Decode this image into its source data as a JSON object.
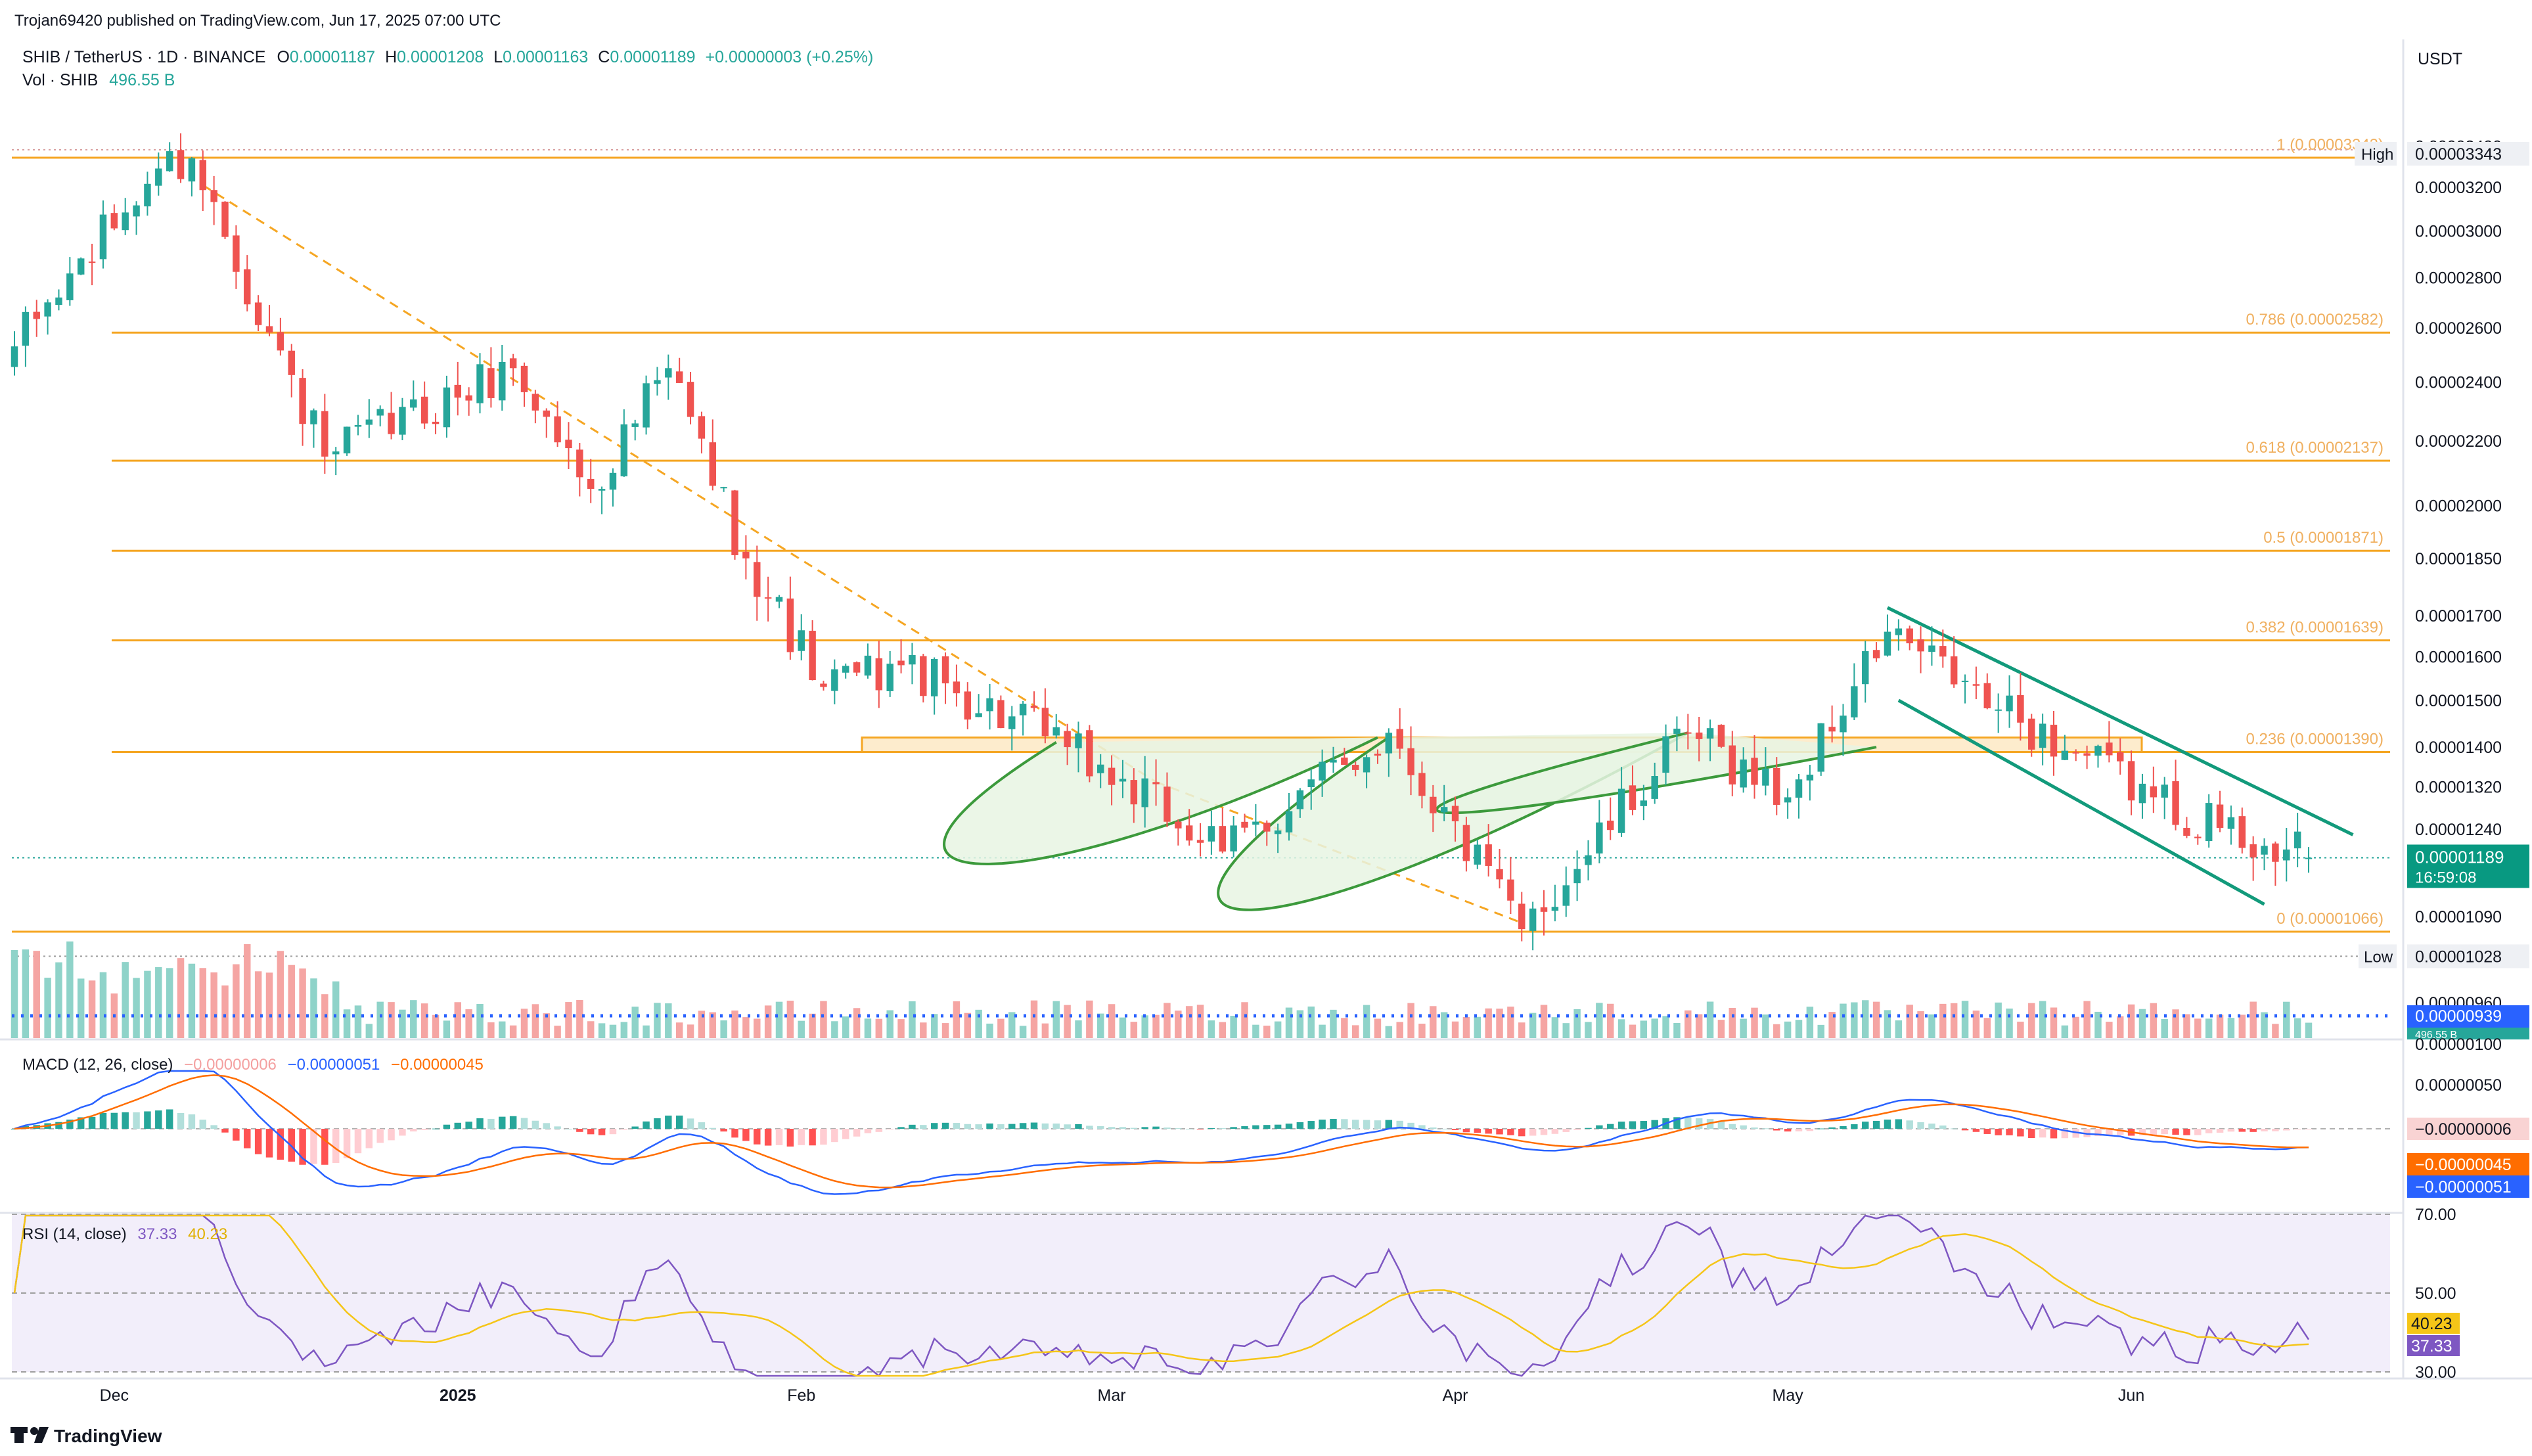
{
  "header": {
    "published": "Trojan69420 published on TradingView.com, Jun 17, 2025 07:00 UTC",
    "symbol": "SHIB / TetherUS · 1D · BINANCE",
    "ohlc": [
      {
        "k": "O",
        "v": "0.00001187"
      },
      {
        "k": "H",
        "v": "0.00001208"
      },
      {
        "k": "L",
        "v": "0.00001163"
      },
      {
        "k": "C",
        "v": "0.00001189"
      }
    ],
    "change": "+0.00000003 (+0.25%)",
    "vol_label": "Vol · SHIB",
    "vol_value": "496.55 B",
    "currency": "USDT",
    "brand": "TradingView",
    "colors": {
      "up": "#26a69a",
      "down": "#ef5350",
      "fib": "#f5a623",
      "pattern": "#3c9a3c",
      "channel": "#129a7b",
      "macd": "#2962ff",
      "signal": "#ff6d00",
      "rsi": "#7e57c2",
      "rsi_ma": "#f5c518"
    }
  },
  "price_axis": {
    "labels": [
      "0.00003400",
      "0.00003200",
      "0.00003000",
      "0.00002800",
      "0.00002600",
      "0.00002400",
      "0.00002200",
      "0.00002000",
      "0.00001850",
      "0.00001700",
      "0.00001600",
      "0.00001500",
      "0.00001400",
      "0.00001320",
      "0.00001240",
      "0.00001090",
      "0.00000960"
    ],
    "high_tag": "High",
    "high_value": "0.00003343",
    "low_tag": "Low",
    "low_value": "0.00001028",
    "last_price": "0.00001189",
    "countdown": "16:59:08",
    "vol_avg_value": "0.00000939",
    "vol_tag": "496.55 B"
  },
  "time_axis": [
    "Dec",
    "2025",
    "Feb",
    "Mar",
    "Apr",
    "May",
    "Jun"
  ],
  "fib_levels": [
    {
      "label": "1 (0.00003343)",
      "value": 3.343e-05
    },
    {
      "label": "0.786 (0.00002582)",
      "value": 2.582e-05
    },
    {
      "label": "0.618 (0.00002137)",
      "value": 2.137e-05
    },
    {
      "label": "0.5 (0.00001871)",
      "value": 1.871e-05
    },
    {
      "label": "0.382 (0.00001639)",
      "value": 1.639e-05
    },
    {
      "label": "0.236 (0.00001390)",
      "value": 1.39e-05
    },
    {
      "label": "0 (0.00001066)",
      "value": 1.066e-05
    }
  ],
  "macd": {
    "label": "MACD (12, 26, close)",
    "hist_value": "−0.00000006",
    "macd_value": "−0.00000051",
    "signal_value": "−0.00000045",
    "axis_labels": [
      "0.00000100",
      "0.00000050"
    ],
    "tags": {
      "hist": "−0.00000006",
      "signal": "−0.00000045",
      "macd": "−0.00000051"
    }
  },
  "rsi": {
    "label": "RSI (14, close)",
    "rsi_value": "37.33",
    "ma_value": "40.23",
    "axis_labels": [
      "70.00",
      "50.00",
      "30.00"
    ],
    "tags": {
      "ma": "40.23",
      "rsi": "37.33"
    }
  },
  "chart_data": {
    "type": "candlestick",
    "title": "SHIB / TetherUS · 1D · BINANCE",
    "yscale": "log",
    "ylim": [
      9.4e-06,
      3.55e-05
    ],
    "x_range": [
      "2024-11-22",
      "2025-06-17"
    ],
    "key_points": [
      {
        "date": "2024-11-22",
        "close": 2.53e-05
      },
      {
        "date": "2024-12-05",
        "close": 3.29e-05
      },
      {
        "date": "2024-12-08",
        "close": 3.34e-05
      },
      {
        "date": "2024-12-20",
        "close": 2.15e-05
      },
      {
        "date": "2025-01-06",
        "close": 2.45e-05
      },
      {
        "date": "2025-01-13",
        "close": 2.05e-05
      },
      {
        "date": "2025-01-20",
        "close": 2.45e-05
      },
      {
        "date": "2025-01-27",
        "close": 1.85e-05
      },
      {
        "date": "2025-02-03",
        "close": 1.53e-05
      },
      {
        "date": "2025-02-10",
        "close": 1.58e-05
      },
      {
        "date": "2025-02-25",
        "close": 1.4e-05
      },
      {
        "date": "2025-03-11",
        "close": 1.2e-05
      },
      {
        "date": "2025-03-26",
        "close": 1.43e-05
      },
      {
        "date": "2025-04-07",
        "close": 1.07e-05
      },
      {
        "date": "2025-04-22",
        "close": 1.43e-05
      },
      {
        "date": "2025-05-01",
        "close": 1.3e-05
      },
      {
        "date": "2025-05-10",
        "close": 1.66e-05
      },
      {
        "date": "2025-05-20",
        "close": 1.48e-05
      },
      {
        "date": "2025-06-03",
        "close": 1.3e-05
      },
      {
        "date": "2025-06-13",
        "close": 1.21e-05
      },
      {
        "date": "2025-06-17",
        "close": 1.189e-05
      }
    ],
    "last_candle": {
      "date": "2025-06-17",
      "open": 1.187e-05,
      "high": 1.208e-05,
      "low": 1.163e-05,
      "close": 1.189e-05
    },
    "volume_last": "496.55 B"
  }
}
